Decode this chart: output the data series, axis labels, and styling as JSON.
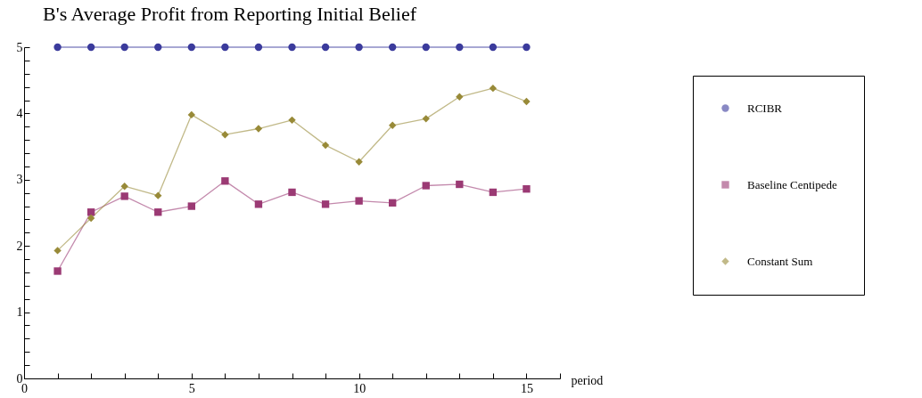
{
  "chart_data": {
    "type": "line",
    "title": "B's Average Profit from Reporting Initial Belief",
    "xlabel": "period",
    "x": [
      1,
      2,
      3,
      4,
      5,
      6,
      7,
      8,
      9,
      10,
      11,
      12,
      13,
      14,
      15
    ],
    "series": [
      {
        "name": "RCIBR",
        "color": "#3b3b9c",
        "marker": "circle",
        "values": [
          5,
          5,
          5,
          5,
          5,
          5,
          5,
          5,
          5,
          5,
          5,
          5,
          5,
          5,
          5
        ]
      },
      {
        "name": "Baseline Centipede",
        "color": "#9b3a74",
        "marker": "square",
        "values": [
          1.62,
          2.51,
          2.75,
          2.51,
          2.6,
          2.98,
          2.63,
          2.81,
          2.63,
          2.68,
          2.65,
          2.91,
          2.93,
          2.81,
          2.86
        ]
      },
      {
        "name": "Constant Sum",
        "color": "#988a38",
        "marker": "diamond",
        "values": [
          1.93,
          2.42,
          2.9,
          2.76,
          3.98,
          3.68,
          3.77,
          3.9,
          3.52,
          3.27,
          3.82,
          3.92,
          4.25,
          4.38,
          4.18
        ]
      }
    ],
    "xlim": [
      0,
      16
    ],
    "xticks": [
      0,
      {
        "value": 1,
        "label": null
      },
      {
        "value": 2,
        "label": null
      },
      {
        "value": 3,
        "label": null
      },
      {
        "value": 4,
        "label": null
      },
      5,
      {
        "value": 6,
        "label": null
      },
      {
        "value": 7,
        "label": null
      },
      {
        "value": 8,
        "label": null
      },
      {
        "value": 9,
        "label": null
      },
      10,
      {
        "value": 11,
        "label": null
      },
      {
        "value": 12,
        "label": null
      },
      {
        "value": 13,
        "label": null
      },
      {
        "value": 14,
        "label": null
      },
      15,
      {
        "value": 16,
        "label": null
      }
    ],
    "ylim": [
      0,
      5
    ],
    "yticks": [
      0,
      {
        "value": 0.2,
        "label": null
      },
      {
        "value": 0.4,
        "label": null
      },
      {
        "value": 0.6,
        "label": null
      },
      {
        "value": 0.8,
        "label": null
      },
      1,
      {
        "value": 1.2,
        "label": null
      },
      {
        "value": 1.4,
        "label": null
      },
      {
        "value": 1.6,
        "label": null
      },
      {
        "value": 1.8,
        "label": null
      },
      2,
      {
        "value": 2.2,
        "label": null
      },
      {
        "value": 2.4,
        "label": null
      },
      {
        "value": 2.6,
        "label": null
      },
      {
        "value": 2.8,
        "label": null
      },
      3,
      {
        "value": 3.2,
        "label": null
      },
      {
        "value": 3.4,
        "label": null
      },
      {
        "value": 3.6,
        "label": null
      },
      {
        "value": 3.8,
        "label": null
      },
      4,
      {
        "value": 4.2,
        "label": null
      },
      {
        "value": 4.4,
        "label": null
      },
      {
        "value": 4.6,
        "label": null
      },
      {
        "value": 4.8,
        "label": null
      },
      5
    ],
    "grid": false,
    "legend": "right",
    "line_style": "solid"
  }
}
